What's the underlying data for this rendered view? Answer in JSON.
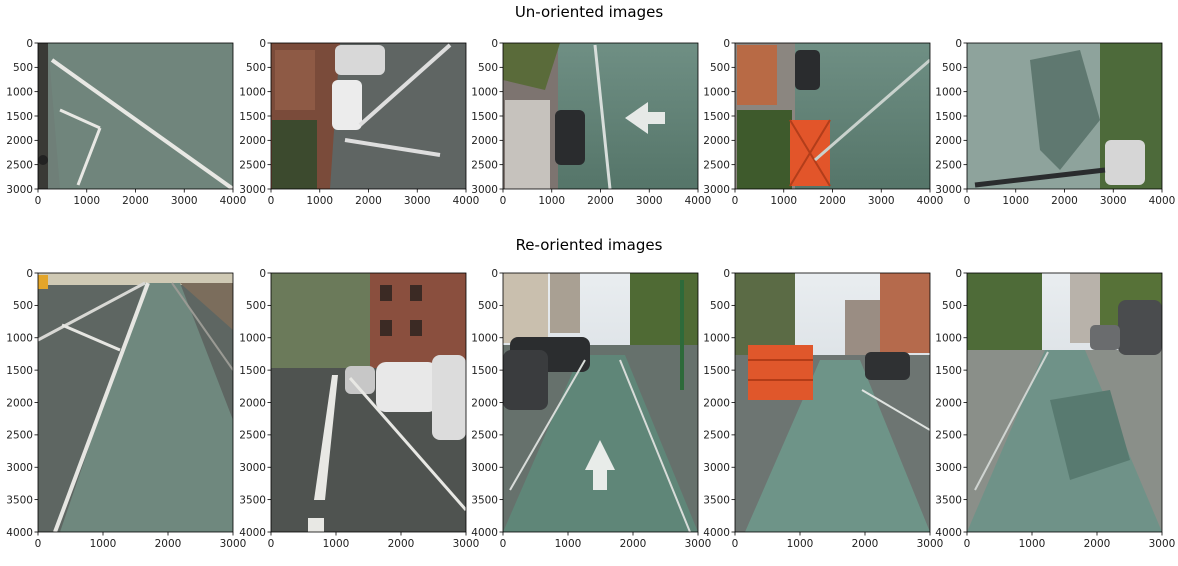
{
  "figure": {
    "rows": [
      {
        "title": "Un-oriented images",
        "x_ticks": [
          "0",
          "1000",
          "2000",
          "3000",
          "4000"
        ],
        "y_ticks": [
          "0",
          "500",
          "1000",
          "1500",
          "2000",
          "2500",
          "3000"
        ],
        "xlim": [
          0,
          4000
        ],
        "ylim": [
          3000,
          0
        ],
        "panels": [
          {
            "scene": "bike-lane-rotated-green-road"
          },
          {
            "scene": "street-rotated-parked-cars-brownstones"
          },
          {
            "scene": "bike-lane-rotated-arrow-trees"
          },
          {
            "scene": "bike-lane-rotated-orange-barriers"
          },
          {
            "scene": "bike-lane-rotated-shaded-trees"
          }
        ]
      },
      {
        "title": "Re-oriented images",
        "x_ticks": [
          "0",
          "1000",
          "2000",
          "3000"
        ],
        "y_ticks": [
          "0",
          "500",
          "1000",
          "1500",
          "2000",
          "2500",
          "3000",
          "3500",
          "4000"
        ],
        "xlim": [
          0,
          3000
        ],
        "ylim": [
          4000,
          0
        ],
        "panels": [
          {
            "scene": "bike-lane-upright-green-road"
          },
          {
            "scene": "street-upright-parked-cars-brownstones"
          },
          {
            "scene": "bike-lane-upright-arrow-trees"
          },
          {
            "scene": "bike-lane-upright-orange-barriers"
          },
          {
            "scene": "bike-lane-upright-shaded-trees"
          }
        ]
      }
    ]
  },
  "chart_data": {
    "type": "image-grid",
    "rows": 2,
    "cols": 5,
    "titles": [
      "Un-oriented images",
      "Re-oriented images"
    ],
    "un_oriented": {
      "xlim": [
        0,
        4000
      ],
      "ylim": [
        3000,
        0
      ]
    },
    "re_oriented": {
      "xlim": [
        0,
        3000
      ],
      "ylim": [
        4000,
        0
      ]
    },
    "grid": false
  }
}
